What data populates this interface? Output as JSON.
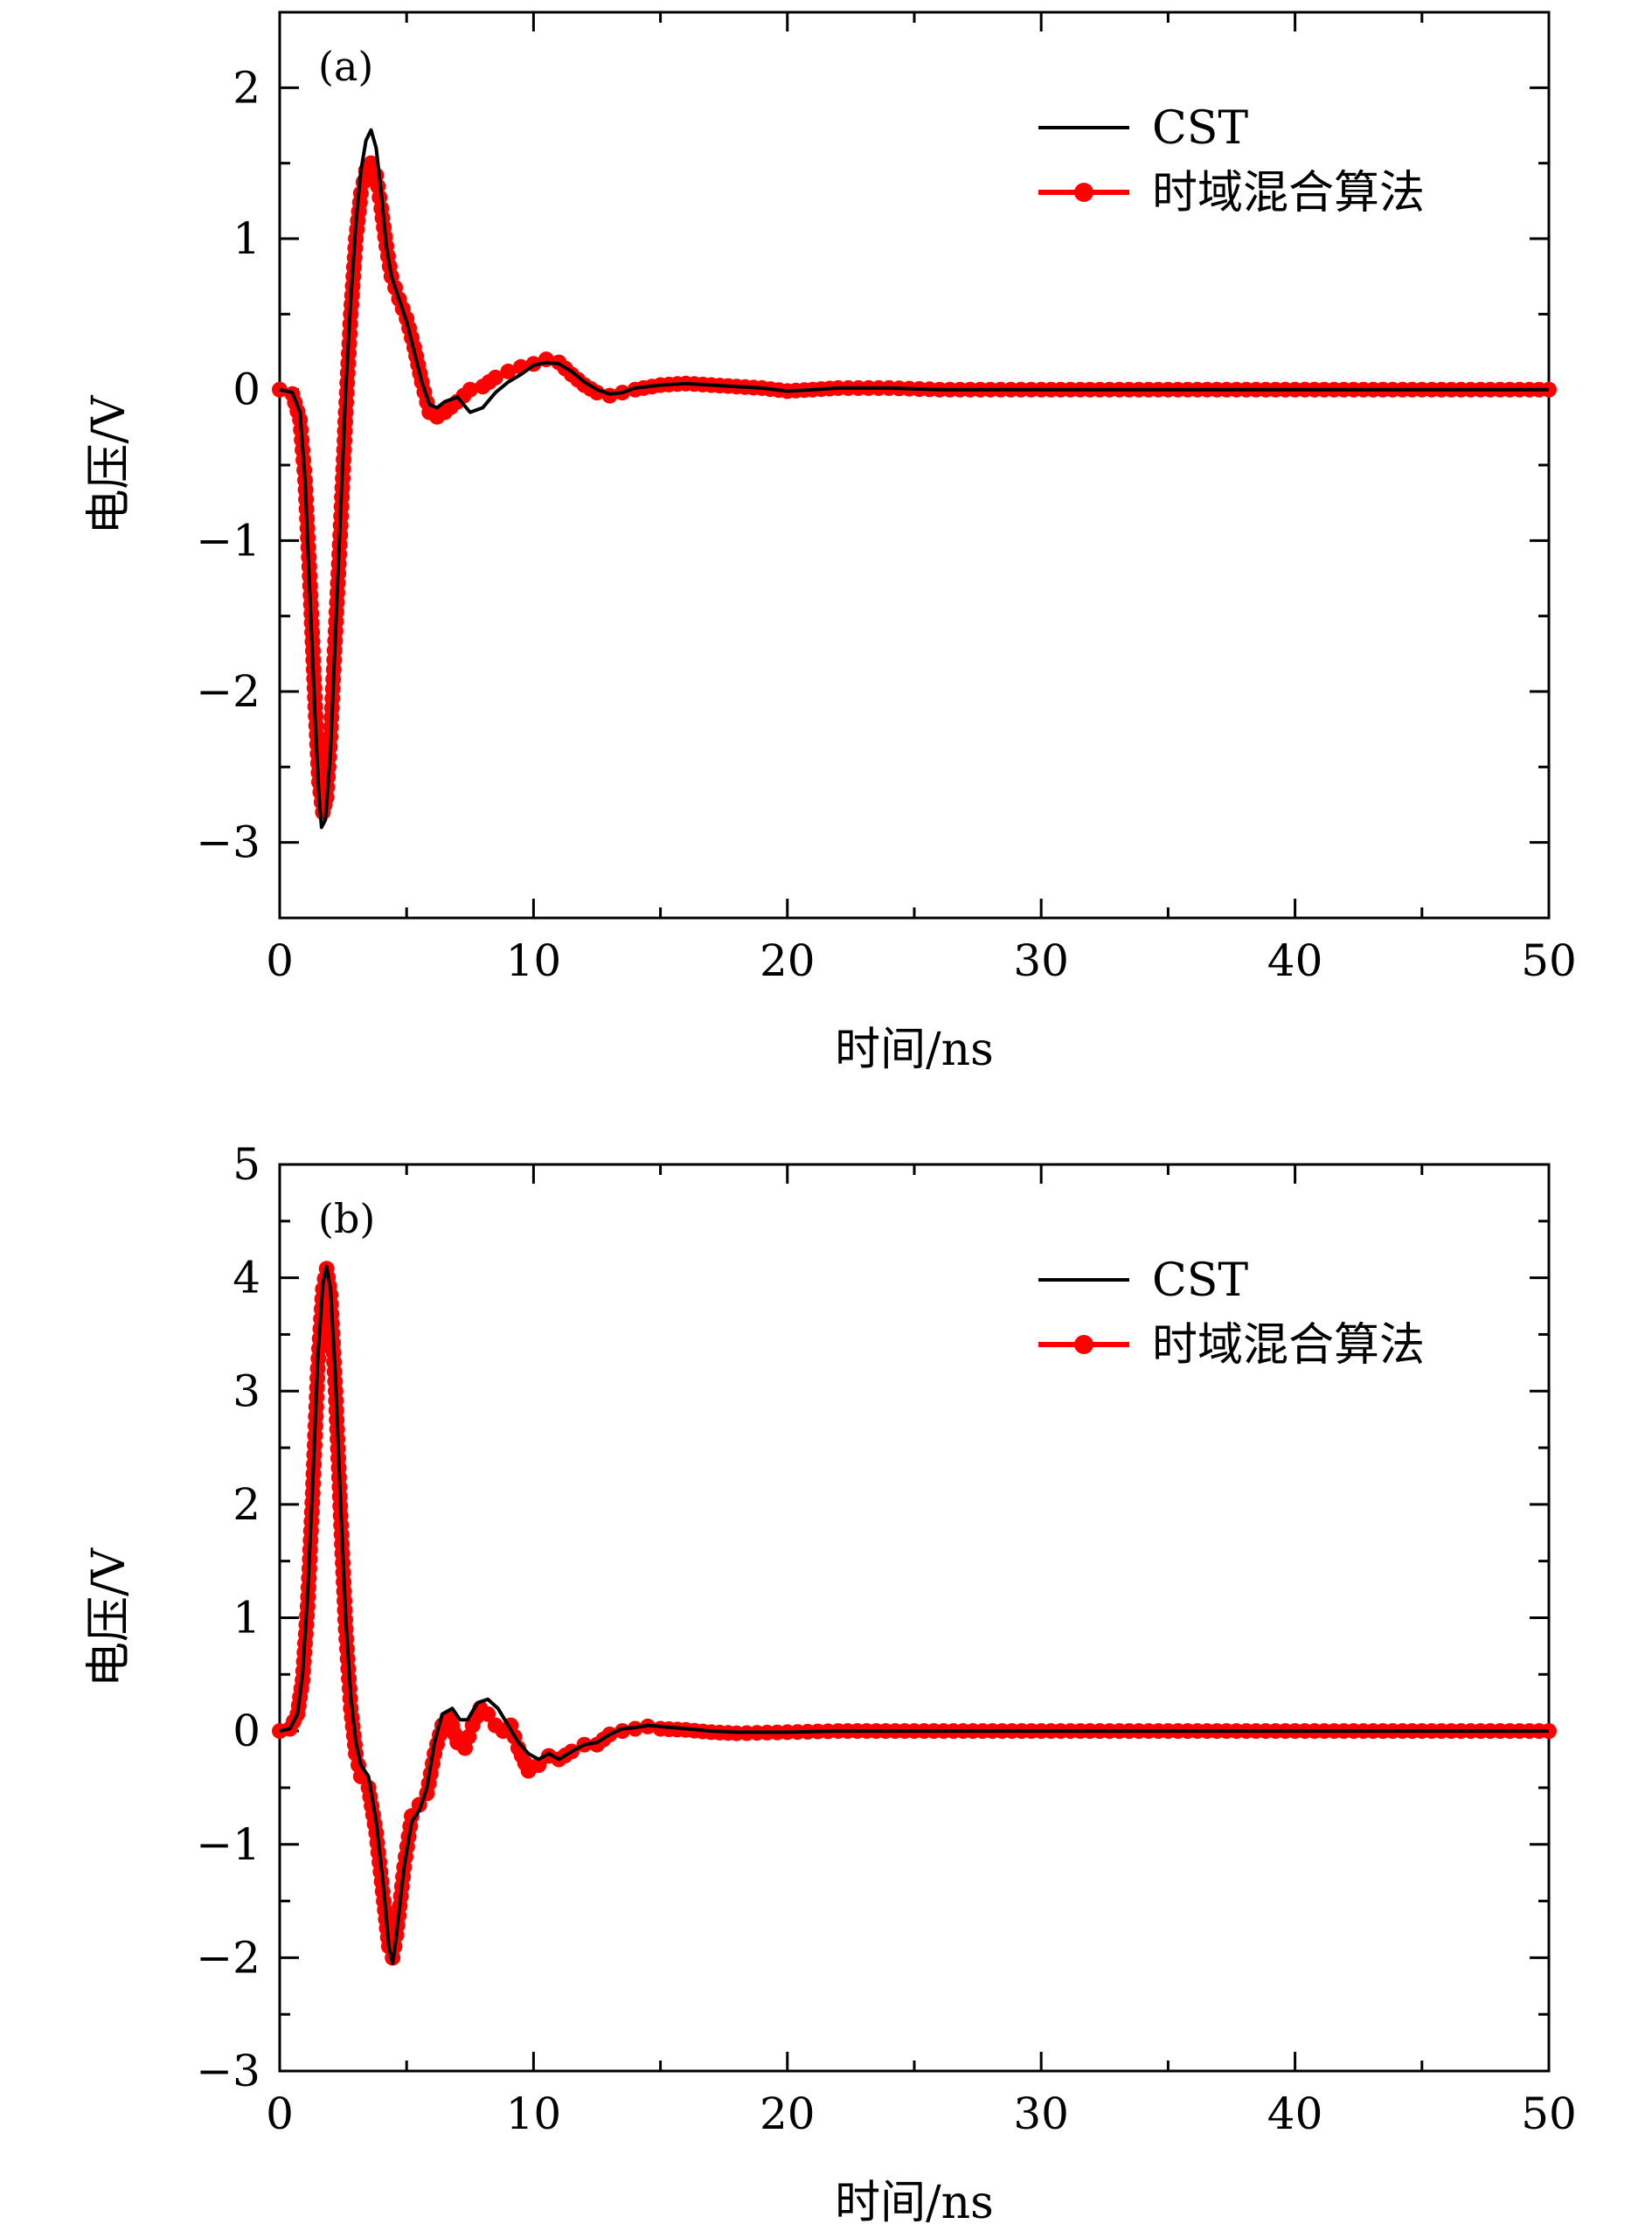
{
  "colors": {
    "cst": "#000000",
    "hybrid": "#ff0000",
    "axes": "#000000",
    "background": "#ffffff"
  },
  "chart_data": [
    {
      "type": "line",
      "panel_label": "(a)",
      "xlabel": "时间/ns",
      "ylabel": "电压/V",
      "xlim": [
        0,
        50
      ],
      "ylim": [
        -3.5,
        2.5
      ],
      "xticks": [
        0,
        10,
        20,
        30,
        40,
        50
      ],
      "xtick_labels": [
        "0",
        "10",
        "20",
        "30",
        "40",
        "50"
      ],
      "yticks": [
        -3,
        -2,
        -1,
        0,
        1,
        2
      ],
      "ytick_labels": [
        "−3",
        "−2",
        "−1",
        "0",
        "1",
        "2"
      ],
      "grid": false,
      "legend_position": "top-right",
      "legend": [
        "CST",
        "时域混合算法"
      ],
      "series": [
        {
          "name": "CST",
          "style": "line",
          "points": [
            [
              0,
              0
            ],
            [
              0.5,
              -0.02
            ],
            [
              0.8,
              -0.15
            ],
            [
              1.0,
              -0.6
            ],
            [
              1.2,
              -1.4
            ],
            [
              1.4,
              -2.2
            ],
            [
              1.55,
              -2.7
            ],
            [
              1.65,
              -2.9
            ],
            [
              1.8,
              -2.85
            ],
            [
              2.0,
              -2.4
            ],
            [
              2.2,
              -1.6
            ],
            [
              2.4,
              -0.8
            ],
            [
              2.6,
              0.0
            ],
            [
              2.8,
              0.6
            ],
            [
              3.0,
              1.1
            ],
            [
              3.2,
              1.45
            ],
            [
              3.4,
              1.65
            ],
            [
              3.6,
              1.72
            ],
            [
              3.8,
              1.6
            ],
            [
              4.0,
              1.3
            ],
            [
              4.2,
              0.95
            ],
            [
              4.4,
              0.75
            ],
            [
              4.7,
              0.6
            ],
            [
              5.0,
              0.45
            ],
            [
              5.3,
              0.25
            ],
            [
              5.6,
              0.05
            ],
            [
              5.9,
              -0.1
            ],
            [
              6.2,
              -0.12
            ],
            [
              6.5,
              -0.08
            ],
            [
              7.0,
              -0.05
            ],
            [
              7.5,
              -0.15
            ],
            [
              8.0,
              -0.12
            ],
            [
              8.5,
              -0.02
            ],
            [
              9.0,
              0.05
            ],
            [
              9.5,
              0.1
            ],
            [
              10.0,
              0.16
            ],
            [
              10.5,
              0.18
            ],
            [
              11.0,
              0.17
            ],
            [
              11.5,
              0.12
            ],
            [
              12.0,
              0.05
            ],
            [
              12.5,
              0.0
            ],
            [
              13.0,
              -0.03
            ],
            [
              13.5,
              -0.02
            ],
            [
              14.0,
              0.01
            ],
            [
              15.0,
              0.03
            ],
            [
              16.0,
              0.04
            ],
            [
              17.0,
              0.03
            ],
            [
              18.0,
              0.02
            ],
            [
              19.0,
              0.01
            ],
            [
              20.0,
              -0.01
            ],
            [
              21.0,
              0.0
            ],
            [
              22.0,
              0.01
            ],
            [
              24.0,
              0.01
            ],
            [
              26.0,
              0.0
            ],
            [
              28.0,
              0.0
            ],
            [
              30.0,
              0.0
            ],
            [
              35.0,
              0.0
            ],
            [
              40.0,
              0.0
            ],
            [
              45.0,
              0.0
            ],
            [
              50.0,
              0.0
            ]
          ]
        },
        {
          "name": "时域混合算法",
          "style": "line-marker",
          "points": [
            [
              0,
              0
            ],
            [
              0.5,
              -0.03
            ],
            [
              0.8,
              -0.2
            ],
            [
              1.0,
              -0.6
            ],
            [
              1.2,
              -1.3
            ],
            [
              1.4,
              -2.1
            ],
            [
              1.55,
              -2.6
            ],
            [
              1.7,
              -2.8
            ],
            [
              1.85,
              -2.7
            ],
            [
              2.0,
              -2.3
            ],
            [
              2.2,
              -1.6
            ],
            [
              2.4,
              -0.9
            ],
            [
              2.6,
              -0.15
            ],
            [
              2.8,
              0.5
            ],
            [
              3.0,
              1.0
            ],
            [
              3.2,
              1.3
            ],
            [
              3.4,
              1.45
            ],
            [
              3.6,
              1.5
            ],
            [
              3.8,
              1.42
            ],
            [
              4.0,
              1.2
            ],
            [
              4.2,
              0.95
            ],
            [
              4.4,
              0.75
            ],
            [
              4.7,
              0.6
            ],
            [
              5.0,
              0.47
            ],
            [
              5.3,
              0.28
            ],
            [
              5.6,
              0.05
            ],
            [
              5.9,
              -0.15
            ],
            [
              6.2,
              -0.18
            ],
            [
              6.5,
              -0.15
            ],
            [
              7.0,
              -0.08
            ],
            [
              7.5,
              0.0
            ],
            [
              8.0,
              0.02
            ],
            [
              8.5,
              0.08
            ],
            [
              9.0,
              0.12
            ],
            [
              9.5,
              0.15
            ],
            [
              10.0,
              0.17
            ],
            [
              10.5,
              0.2
            ],
            [
              11.0,
              0.18
            ],
            [
              11.5,
              0.1
            ],
            [
              12.0,
              0.03
            ],
            [
              12.5,
              -0.02
            ],
            [
              13.0,
              -0.04
            ],
            [
              13.5,
              -0.02
            ],
            [
              14.0,
              0.0
            ],
            [
              15.0,
              0.03
            ],
            [
              16.0,
              0.04
            ],
            [
              17.0,
              0.03
            ],
            [
              18.0,
              0.02
            ],
            [
              19.0,
              0.01
            ],
            [
              20.0,
              -0.01
            ],
            [
              21.0,
              0.0
            ],
            [
              22.0,
              0.01
            ],
            [
              24.0,
              0.01
            ],
            [
              26.0,
              0.0
            ],
            [
              28.0,
              0.0
            ],
            [
              30.0,
              0.0
            ],
            [
              35.0,
              0.0
            ],
            [
              40.0,
              0.0
            ],
            [
              45.0,
              0.0
            ],
            [
              50.0,
              0.0
            ]
          ]
        }
      ]
    },
    {
      "type": "line",
      "panel_label": "(b)",
      "xlabel": "时间/ns",
      "ylabel": "电压/V",
      "xlim": [
        0,
        50
      ],
      "ylim": [
        -3,
        5
      ],
      "xticks": [
        0,
        10,
        20,
        30,
        40,
        50
      ],
      "xtick_labels": [
        "0",
        "10",
        "20",
        "30",
        "40",
        "50"
      ],
      "yticks": [
        -3,
        -2,
        -1,
        0,
        1,
        2,
        3,
        4,
        5
      ],
      "ytick_labels": [
        "−3",
        "−2",
        "−1",
        "0",
        "1",
        "2",
        "3",
        "4",
        "5"
      ],
      "grid": false,
      "legend_position": "top-right",
      "legend": [
        "CST",
        "时域混合算法"
      ],
      "series": [
        {
          "name": "CST",
          "style": "line",
          "points": [
            [
              0,
              0
            ],
            [
              0.4,
              0.02
            ],
            [
              0.7,
              0.15
            ],
            [
              0.9,
              0.5
            ],
            [
              1.1,
              1.2
            ],
            [
              1.3,
              2.2
            ],
            [
              1.5,
              3.3
            ],
            [
              1.7,
              3.95
            ],
            [
              1.85,
              4.1
            ],
            [
              2.0,
              3.9
            ],
            [
              2.2,
              3.1
            ],
            [
              2.4,
              2.0
            ],
            [
              2.6,
              1.0
            ],
            [
              2.8,
              0.3
            ],
            [
              3.0,
              -0.1
            ],
            [
              3.2,
              -0.3
            ],
            [
              3.5,
              -0.4
            ],
            [
              3.8,
              -0.8
            ],
            [
              4.1,
              -1.4
            ],
            [
              4.3,
              -1.9
            ],
            [
              4.45,
              -2.05
            ],
            [
              4.6,
              -1.8
            ],
            [
              4.9,
              -1.2
            ],
            [
              5.2,
              -0.8
            ],
            [
              5.5,
              -0.7
            ],
            [
              5.8,
              -0.5
            ],
            [
              6.1,
              -0.1
            ],
            [
              6.4,
              0.15
            ],
            [
              6.8,
              0.2
            ],
            [
              7.1,
              0.1
            ],
            [
              7.4,
              0.1
            ],
            [
              7.8,
              0.25
            ],
            [
              8.2,
              0.28
            ],
            [
              8.6,
              0.2
            ],
            [
              9.0,
              0.05
            ],
            [
              9.4,
              -0.1
            ],
            [
              9.8,
              -0.2
            ],
            [
              10.2,
              -0.25
            ],
            [
              10.6,
              -0.2
            ],
            [
              11.0,
              -0.25
            ],
            [
              11.5,
              -0.18
            ],
            [
              12.0,
              -0.12
            ],
            [
              12.5,
              -0.1
            ],
            [
              13.0,
              -0.03
            ],
            [
              13.5,
              0.02
            ],
            [
              14.0,
              0.03
            ],
            [
              14.5,
              0.05
            ],
            [
              15.0,
              0.04
            ],
            [
              16.0,
              0.02
            ],
            [
              17.0,
              0.0
            ],
            [
              18.0,
              -0.01
            ],
            [
              20.0,
              -0.01
            ],
            [
              22.0,
              0.0
            ],
            [
              25.0,
              0.0
            ],
            [
              30.0,
              0.0
            ],
            [
              35.0,
              0.0
            ],
            [
              40.0,
              0.0
            ],
            [
              45.0,
              0.0
            ],
            [
              50.0,
              0.0
            ]
          ]
        },
        {
          "name": "时域混合算法",
          "style": "line-marker",
          "points": [
            [
              0,
              0
            ],
            [
              0.4,
              0.02
            ],
            [
              0.7,
              0.15
            ],
            [
              0.9,
              0.45
            ],
            [
              1.1,
              1.1
            ],
            [
              1.3,
              2.1
            ],
            [
              1.5,
              3.2
            ],
            [
              1.7,
              3.9
            ],
            [
              1.85,
              4.08
            ],
            [
              2.0,
              3.85
            ],
            [
              2.2,
              3.0
            ],
            [
              2.4,
              1.9
            ],
            [
              2.6,
              0.9
            ],
            [
              2.8,
              0.2
            ],
            [
              3.0,
              -0.2
            ],
            [
              3.2,
              -0.4
            ],
            [
              3.5,
              -0.5
            ],
            [
              3.8,
              -0.9
            ],
            [
              4.1,
              -1.5
            ],
            [
              4.3,
              -1.9
            ],
            [
              4.45,
              -2.0
            ],
            [
              4.6,
              -1.8
            ],
            [
              4.9,
              -1.2
            ],
            [
              5.2,
              -0.75
            ],
            [
              5.5,
              -0.65
            ],
            [
              5.8,
              -0.55
            ],
            [
              6.1,
              -0.2
            ],
            [
              6.4,
              0.05
            ],
            [
              6.7,
              0.12
            ],
            [
              7.0,
              -0.1
            ],
            [
              7.3,
              -0.15
            ],
            [
              7.6,
              0.05
            ],
            [
              7.9,
              0.2
            ],
            [
              8.2,
              0.15
            ],
            [
              8.5,
              0.05
            ],
            [
              8.8,
              0.0
            ],
            [
              9.1,
              0.05
            ],
            [
              9.4,
              -0.15
            ],
            [
              9.8,
              -0.35
            ],
            [
              10.2,
              -0.3
            ],
            [
              10.6,
              -0.22
            ],
            [
              11.0,
              -0.25
            ],
            [
              11.5,
              -0.18
            ],
            [
              12.0,
              -0.12
            ],
            [
              12.5,
              -0.12
            ],
            [
              13.0,
              -0.03
            ],
            [
              13.5,
              0.0
            ],
            [
              14.0,
              0.02
            ],
            [
              14.5,
              0.04
            ],
            [
              15.0,
              0.02
            ],
            [
              16.0,
              0.01
            ],
            [
              17.0,
              -0.01
            ],
            [
              18.0,
              -0.02
            ],
            [
              20.0,
              -0.01
            ],
            [
              22.0,
              0.0
            ],
            [
              25.0,
              0.0
            ],
            [
              30.0,
              0.0
            ],
            [
              35.0,
              0.0
            ],
            [
              40.0,
              0.0
            ],
            [
              45.0,
              0.0
            ],
            [
              50.0,
              0.0
            ]
          ]
        }
      ]
    }
  ]
}
